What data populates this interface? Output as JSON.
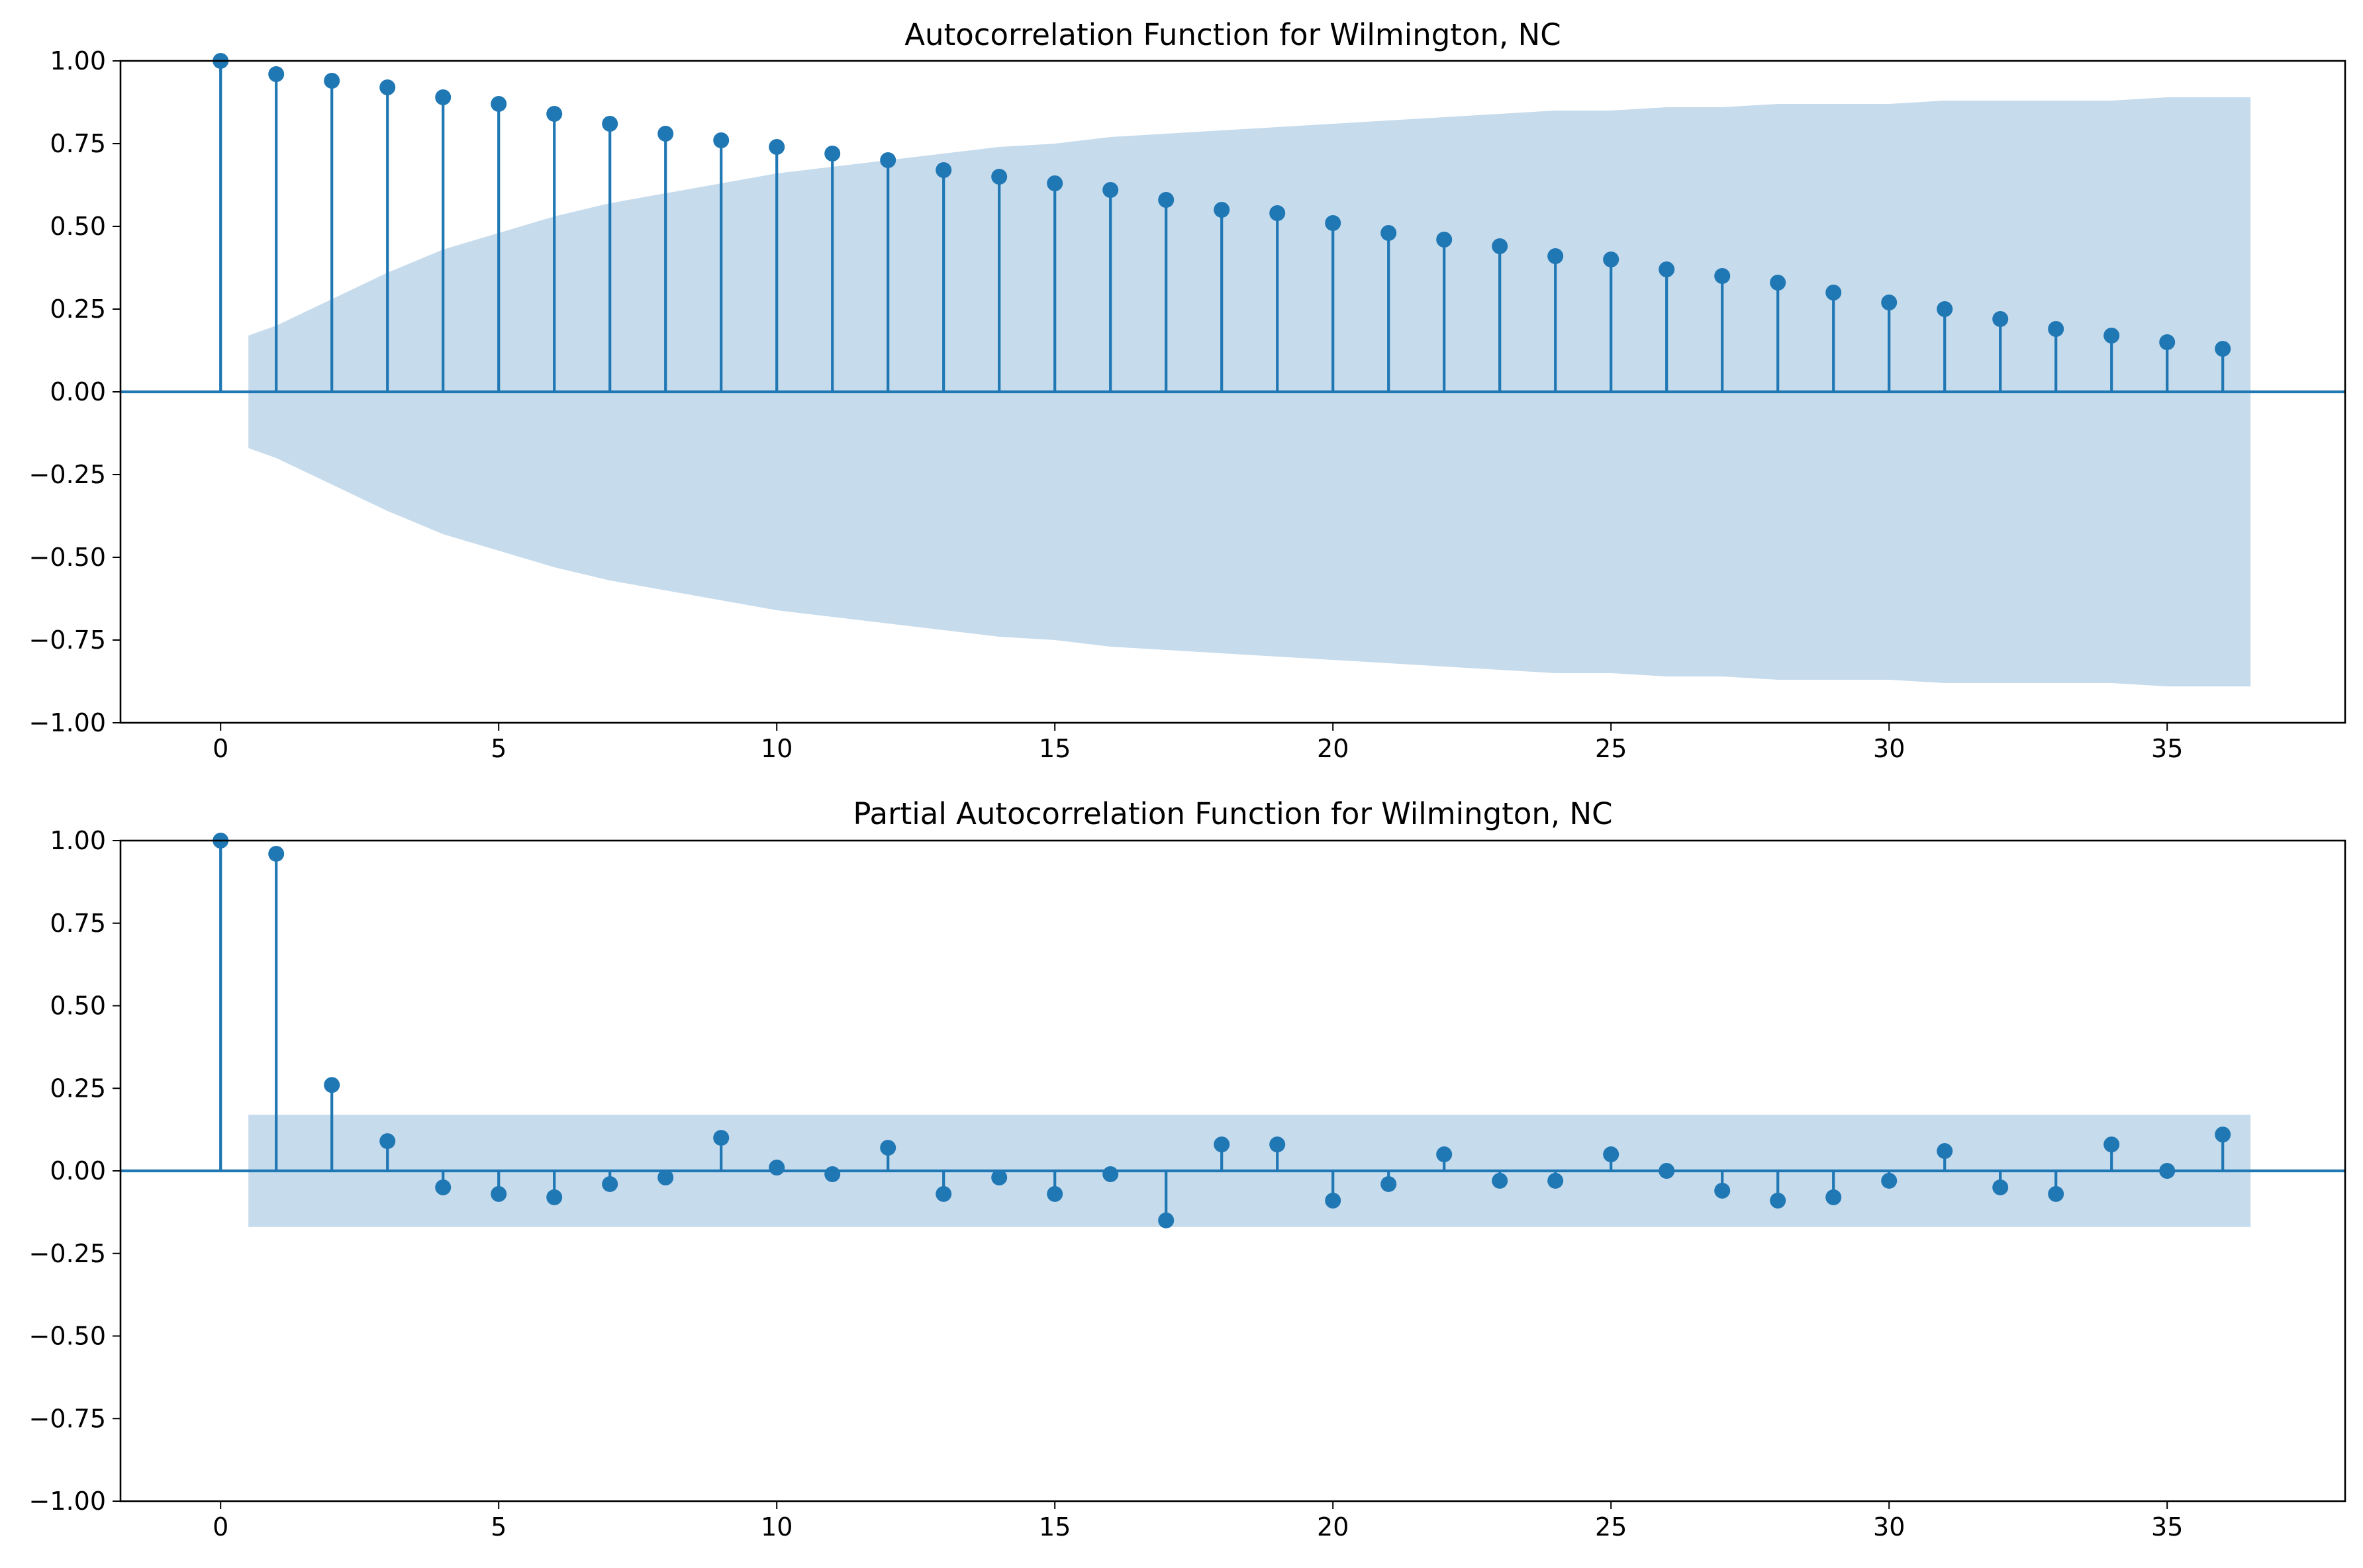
{
  "chart_data": [
    {
      "type": "stem",
      "title": "Autocorrelation Function for Wilmington, NC",
      "xlabel": "",
      "ylabel": "",
      "xlim": [
        -1.8,
        38.2
      ],
      "ylim": [
        -1.0,
        1.0
      ],
      "xticks": [
        "0",
        "5",
        "10",
        "15",
        "20",
        "25",
        "30",
        "35"
      ],
      "yticks": [
        "−1.00",
        "−0.75",
        "−0.50",
        "−0.25",
        "0.00",
        "0.25",
        "0.50",
        "0.75",
        "1.00"
      ],
      "color": "#1f77b4",
      "band_color": "#c6dbec",
      "series": [
        {
          "lags": [
            0,
            1,
            2,
            3,
            4,
            5,
            6,
            7,
            8,
            9,
            10,
            11,
            12,
            13,
            14,
            15,
            16,
            17,
            18,
            19,
            20,
            21,
            22,
            23,
            24,
            25,
            26,
            27,
            28,
            29,
            30,
            31,
            32,
            33,
            34,
            35,
            36
          ],
          "values": [
            1.0,
            0.96,
            0.94,
            0.92,
            0.89,
            0.87,
            0.84,
            0.81,
            0.78,
            0.76,
            0.74,
            0.72,
            0.7,
            0.67,
            0.65,
            0.63,
            0.61,
            0.58,
            0.55,
            0.54,
            0.51,
            0.48,
            0.46,
            0.44,
            0.41,
            0.4,
            0.37,
            0.35,
            0.33,
            0.3,
            0.27,
            0.25,
            0.22,
            0.19,
            0.17,
            0.15,
            0.13
          ]
        }
      ],
      "confidence_band": {
        "lags": [
          0.5,
          1,
          2,
          3,
          4,
          5,
          6,
          7,
          8,
          9,
          10,
          11,
          12,
          13,
          14,
          15,
          16,
          17,
          18,
          19,
          20,
          21,
          22,
          23,
          24,
          25,
          26,
          27,
          28,
          29,
          30,
          31,
          32,
          33,
          34,
          35,
          36,
          36.5
        ],
        "upper": [
          0.17,
          0.2,
          0.28,
          0.36,
          0.43,
          0.48,
          0.53,
          0.57,
          0.6,
          0.63,
          0.66,
          0.68,
          0.7,
          0.72,
          0.74,
          0.75,
          0.77,
          0.78,
          0.79,
          0.8,
          0.81,
          0.82,
          0.83,
          0.84,
          0.85,
          0.85,
          0.86,
          0.86,
          0.87,
          0.87,
          0.87,
          0.88,
          0.88,
          0.88,
          0.88,
          0.89,
          0.89,
          0.89
        ]
      }
    },
    {
      "type": "stem",
      "title": "Partial Autocorrelation Function for Wilmington, NC",
      "xlabel": "",
      "ylabel": "",
      "xlim": [
        -1.8,
        38.2
      ],
      "ylim": [
        -1.0,
        1.0
      ],
      "xticks": [
        "0",
        "5",
        "10",
        "15",
        "20",
        "25",
        "30",
        "35"
      ],
      "yticks": [
        "−1.00",
        "−0.75",
        "−0.50",
        "−0.25",
        "0.00",
        "0.25",
        "0.50",
        "0.75",
        "1.00"
      ],
      "color": "#1f77b4",
      "band_color": "#c6dbec",
      "series": [
        {
          "lags": [
            0,
            1,
            2,
            3,
            4,
            5,
            6,
            7,
            8,
            9,
            10,
            11,
            12,
            13,
            14,
            15,
            16,
            17,
            18,
            19,
            20,
            21,
            22,
            23,
            24,
            25,
            26,
            27,
            28,
            29,
            30,
            31,
            32,
            33,
            34,
            35,
            36
          ],
          "values": [
            1.0,
            0.96,
            0.26,
            0.09,
            -0.05,
            -0.07,
            -0.08,
            -0.04,
            -0.02,
            0.1,
            0.01,
            -0.01,
            0.07,
            -0.07,
            -0.02,
            -0.07,
            -0.01,
            -0.15,
            0.08,
            0.08,
            -0.09,
            -0.04,
            0.05,
            -0.03,
            -0.03,
            0.05,
            0.0,
            -0.06,
            -0.09,
            -0.08,
            -0.03,
            0.06,
            -0.05,
            -0.07,
            0.08,
            0.0,
            0.11
          ]
        }
      ],
      "confidence_band": {
        "lags": [
          0.5,
          36.5
        ],
        "upper": [
          0.17,
          0.17
        ]
      }
    }
  ]
}
